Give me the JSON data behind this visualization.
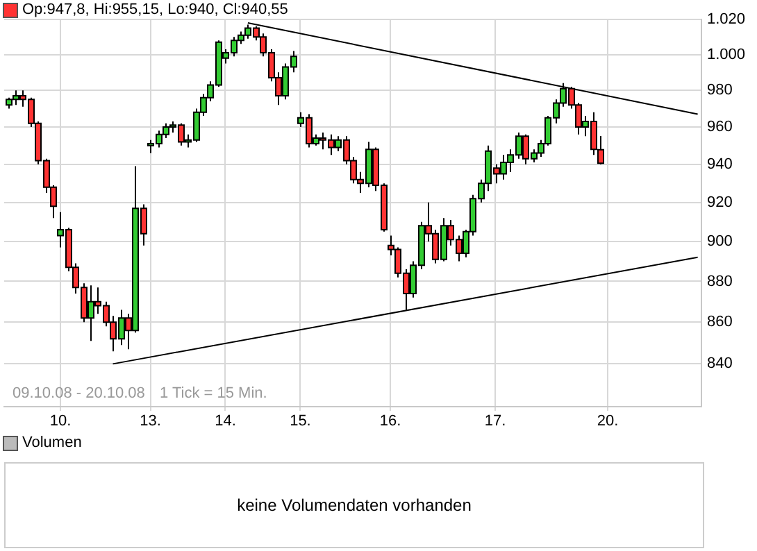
{
  "chart_data": {
    "type": "candlestick",
    "log": true,
    "grid": true,
    "legend": false,
    "marker": "none",
    "annotations": [
      "Op:947,8, Hi:955,15, Lo:940, Cl:940,55",
      "09.10.08 - 20.10.08",
      "1 Tick = 15 Min.",
      "Volumen",
      "keine Volumendaten vorhanden"
    ],
    "categories": [
      null,
      null,
      null,
      null,
      null,
      null,
      null,
      "10.",
      null,
      null,
      null,
      null,
      null,
      null,
      null,
      null,
      null,
      null,
      null,
      "13.",
      null,
      null,
      null,
      null,
      null,
      null,
      null,
      null,
      null,
      "14.",
      null,
      null,
      null,
      null,
      null,
      null,
      null,
      null,
      null,
      "15.",
      null,
      null,
      null,
      null,
      null,
      null,
      null,
      null,
      null,
      null,
      null,
      "16.",
      null,
      null,
      null,
      null,
      null,
      null,
      null,
      null,
      null,
      null,
      null,
      null,
      null,
      "17.",
      null,
      null,
      null,
      null,
      null,
      null,
      null,
      null,
      null,
      null,
      null,
      null,
      null,
      null,
      "20.",
      null,
      null,
      null,
      null,
      null,
      null,
      null,
      null,
      null,
      null,
      null,
      null
    ],
    "ylim": [
      820,
      1020
    ],
    "yticks": [
      {
        "value": 840,
        "label": "840"
      },
      {
        "value": 860,
        "label": "860"
      },
      {
        "value": 880,
        "label": "880"
      },
      {
        "value": 900,
        "label": "900"
      },
      {
        "value": 920,
        "label": "920"
      },
      {
        "value": 940,
        "label": "940"
      },
      {
        "value": 960,
        "label": "960"
      },
      {
        "value": 980,
        "label": "980"
      },
      {
        "value": 1000,
        "label": "1.000"
      },
      {
        "value": 1020,
        "label": "1.020"
      }
    ],
    "series": [
      {
        "ohlc": [
          [
            972,
            976,
            970,
            975
          ],
          [
            975,
            980,
            972,
            977
          ],
          [
            977,
            980,
            971,
            975
          ],
          [
            975,
            976,
            960,
            962
          ],
          [
            962,
            963,
            940,
            942
          ],
          [
            942,
            943,
            925,
            928
          ],
          [
            928,
            929,
            912,
            918
          ],
          [
            903,
            915,
            897,
            906
          ],
          [
            906,
            907,
            885,
            887
          ],
          [
            887,
            889,
            874,
            877
          ],
          [
            877,
            879,
            860,
            862
          ],
          [
            862,
            878,
            851,
            870
          ],
          [
            870,
            877,
            864,
            868
          ],
          [
            868,
            870,
            858,
            860
          ],
          [
            860,
            863,
            846,
            852
          ],
          [
            852,
            866,
            849,
            862
          ],
          [
            862,
            864,
            847,
            856
          ],
          [
            856,
            939,
            855,
            917
          ],
          [
            917,
            919,
            898,
            904
          ],
          [
            950,
            953,
            946,
            951
          ],
          [
            951,
            958,
            949,
            956
          ],
          [
            956,
            962,
            954,
            960
          ],
          [
            960,
            963,
            957,
            961
          ],
          [
            961,
            962,
            950,
            952
          ],
          [
            952,
            956,
            949,
            953
          ],
          [
            953,
            970,
            952,
            968
          ],
          [
            968,
            978,
            966,
            976
          ],
          [
            976,
            985,
            974,
            983
          ],
          [
            983,
            1008,
            982,
            1007
          ],
          [
            998,
            1003,
            995,
            1001
          ],
          [
            1001,
            1010,
            999,
            1008
          ],
          [
            1008,
            1013,
            1006,
            1011
          ],
          [
            1011,
            1017,
            1009,
            1015
          ],
          [
            1015,
            1016,
            1008,
            1010
          ],
          [
            1010,
            1012,
            999,
            1001
          ],
          [
            1001,
            1003,
            985,
            987
          ],
          [
            987,
            990,
            972,
            977
          ],
          [
            977,
            995,
            975,
            993
          ],
          [
            993,
            1002,
            990,
            999
          ],
          [
            962,
            968,
            960,
            965
          ],
          [
            965,
            967,
            949,
            951
          ],
          [
            951,
            956,
            950,
            954
          ],
          [
            954,
            957,
            948,
            953
          ],
          [
            953,
            956,
            945,
            949
          ],
          [
            949,
            955,
            947,
            953
          ],
          [
            953,
            955,
            940,
            942
          ],
          [
            942,
            944,
            930,
            932
          ],
          [
            932,
            936,
            925,
            930
          ],
          [
            930,
            952,
            928,
            948
          ],
          [
            948,
            949,
            926,
            929
          ],
          [
            929,
            930,
            905,
            906
          ],
          [
            898,
            903,
            893,
            896
          ],
          [
            896,
            897,
            882,
            884
          ],
          [
            884,
            886,
            866,
            874
          ],
          [
            874,
            890,
            872,
            888
          ],
          [
            888,
            910,
            886,
            908
          ],
          [
            908,
            920,
            900,
            904
          ],
          [
            904,
            906,
            889,
            891
          ],
          [
            891,
            912,
            890,
            908
          ],
          [
            908,
            911,
            898,
            901
          ],
          [
            901,
            903,
            890,
            894
          ],
          [
            894,
            906,
            892,
            905
          ],
          [
            905,
            924,
            903,
            922
          ],
          [
            922,
            932,
            920,
            930
          ],
          [
            930,
            950,
            926,
            947
          ],
          [
            938,
            940,
            930,
            935
          ],
          [
            935,
            945,
            932,
            941
          ],
          [
            941,
            948,
            936,
            945
          ],
          [
            945,
            957,
            943,
            955
          ],
          [
            955,
            956,
            940,
            943
          ],
          [
            943,
            948,
            941,
            946
          ],
          [
            946,
            953,
            944,
            951
          ],
          [
            951,
            966,
            950,
            965
          ],
          [
            965,
            975,
            962,
            973
          ],
          [
            973,
            984,
            971,
            981
          ],
          [
            981,
            982,
            970,
            972
          ],
          [
            972,
            973,
            956,
            960
          ],
          [
            960,
            966,
            955,
            963
          ],
          [
            963,
            968,
            945,
            948
          ],
          [
            947.8,
            955.15,
            940,
            940.55
          ],
          null,
          null,
          null,
          null,
          null,
          null,
          null,
          null,
          null,
          null,
          null,
          null,
          null
        ],
        "colors": [
          "#33cc33",
          "#33cc33",
          "#ff3333",
          "#ff3333",
          "#ff3333",
          "#ff3333",
          "#ff3333",
          "#33cc33",
          "#ff3333",
          "#ff3333",
          "#ff3333",
          "#33cc33",
          "#ff3333",
          "#ff3333",
          "#ff3333",
          "#33cc33",
          "#ff3333",
          "#33cc33",
          "#ff3333",
          "#33cc33",
          "#33cc33",
          "#33cc33",
          "#33cc33",
          "#ff3333",
          "#33cc33",
          "#33cc33",
          "#33cc33",
          "#33cc33",
          "#33cc33",
          "#33cc33",
          "#33cc33",
          "#33cc33",
          "#33cc33",
          "#ff3333",
          "#ff3333",
          "#ff3333",
          "#ff3333",
          "#33cc33",
          "#33cc33",
          "#33cc33",
          "#ff3333",
          "#33cc33",
          "#ff3333",
          "#ff3333",
          "#33cc33",
          "#ff3333",
          "#ff3333",
          "#ff3333",
          "#33cc33",
          "#ff3333",
          "#ff3333",
          "#ff3333",
          "#ff3333",
          "#ff3333",
          "#33cc33",
          "#33cc33",
          "#ff3333",
          "#ff3333",
          "#33cc33",
          "#ff3333",
          "#ff3333",
          "#33cc33",
          "#33cc33",
          "#33cc33",
          "#33cc33",
          "#ff3333",
          "#33cc33",
          "#33cc33",
          "#33cc33",
          "#ff3333",
          "#33cc33",
          "#33cc33",
          "#33cc33",
          "#33cc33",
          "#33cc33",
          "#ff3333",
          "#ff3333",
          "#33cc33",
          "#ff3333",
          "#ff3333",
          null,
          null,
          null,
          null,
          null,
          null,
          null,
          null,
          null,
          null,
          null,
          null,
          null
        ]
      },
      {
        "type": "line",
        "color": "#000000",
        "values": [
          null,
          null,
          null,
          null,
          null,
          null,
          null,
          null,
          null,
          null,
          null,
          null,
          null,
          null,
          null,
          null,
          null,
          null,
          null,
          null,
          null,
          null,
          null,
          null,
          null,
          null,
          null,
          null,
          null,
          null,
          null,
          null,
          1018,
          null,
          null,
          null,
          null,
          null,
          null,
          null,
          null,
          null,
          null,
          null,
          null,
          null,
          null,
          null,
          null,
          null,
          null,
          null,
          null,
          null,
          null,
          null,
          null,
          null,
          null,
          null,
          null,
          null,
          null,
          null,
          null,
          null,
          null,
          null,
          null,
          null,
          null,
          null,
          null,
          null,
          null,
          null,
          null,
          null,
          null,
          null,
          null,
          null,
          null,
          null,
          null,
          null,
          null,
          null,
          null,
          null,
          null,
          null,
          967
        ]
      },
      {
        "type": "line",
        "color": "#000000",
        "values": [
          null,
          null,
          null,
          null,
          null,
          null,
          null,
          null,
          null,
          null,
          null,
          null,
          null,
          null,
          840,
          null,
          null,
          null,
          null,
          null,
          null,
          null,
          null,
          null,
          null,
          null,
          null,
          null,
          null,
          null,
          null,
          null,
          null,
          null,
          null,
          null,
          null,
          null,
          null,
          null,
          null,
          null,
          null,
          null,
          null,
          null,
          null,
          null,
          null,
          null,
          null,
          null,
          null,
          null,
          null,
          null,
          null,
          null,
          null,
          null,
          null,
          null,
          null,
          null,
          null,
          null,
          null,
          null,
          null,
          null,
          null,
          null,
          null,
          null,
          null,
          null,
          null,
          null,
          null,
          null,
          null,
          null,
          null,
          null,
          null,
          null,
          null,
          null,
          null,
          null,
          null,
          null,
          892
        ]
      }
    ]
  }
}
